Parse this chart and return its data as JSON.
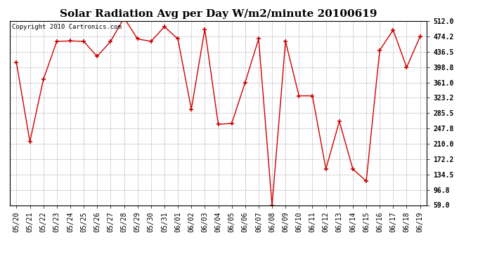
{
  "title": "Solar Radiation Avg per Day W/m2/minute 20100619",
  "copyright_text": "Copyright 2010 Cartronics.com",
  "x_labels": [
    "05/20",
    "05/21",
    "05/22",
    "05/23",
    "05/24",
    "05/25",
    "05/26",
    "05/27",
    "05/28",
    "05/29",
    "05/30",
    "05/31",
    "06/01",
    "06/02",
    "06/03",
    "06/04",
    "06/05",
    "06/06",
    "06/07",
    "06/08",
    "06/09",
    "06/10",
    "06/11",
    "06/12",
    "06/13",
    "06/14",
    "06/15",
    "06/16",
    "06/17",
    "06/18",
    "06/19"
  ],
  "y_values": [
    410,
    215,
    368,
    462,
    463,
    462,
    425,
    462,
    520,
    468,
    462,
    498,
    468,
    295,
    492,
    258,
    260,
    361,
    468,
    59,
    462,
    328,
    328,
    148,
    265,
    148,
    118,
    440,
    490,
    398,
    474
  ],
  "y_ticks": [
    59.0,
    96.8,
    134.5,
    172.2,
    210.0,
    247.8,
    285.5,
    323.2,
    361.0,
    398.8,
    436.5,
    474.2,
    512.0
  ],
  "line_color": "#cc0000",
  "marker_color": "#cc0000",
  "background_color": "#ffffff",
  "grid_color": "#b0b0b0",
  "title_fontsize": 11,
  "copyright_fontsize": 6.5,
  "tick_fontsize": 7,
  "ylim": [
    59.0,
    512.0
  ],
  "fig_width": 6.9,
  "fig_height": 3.75
}
